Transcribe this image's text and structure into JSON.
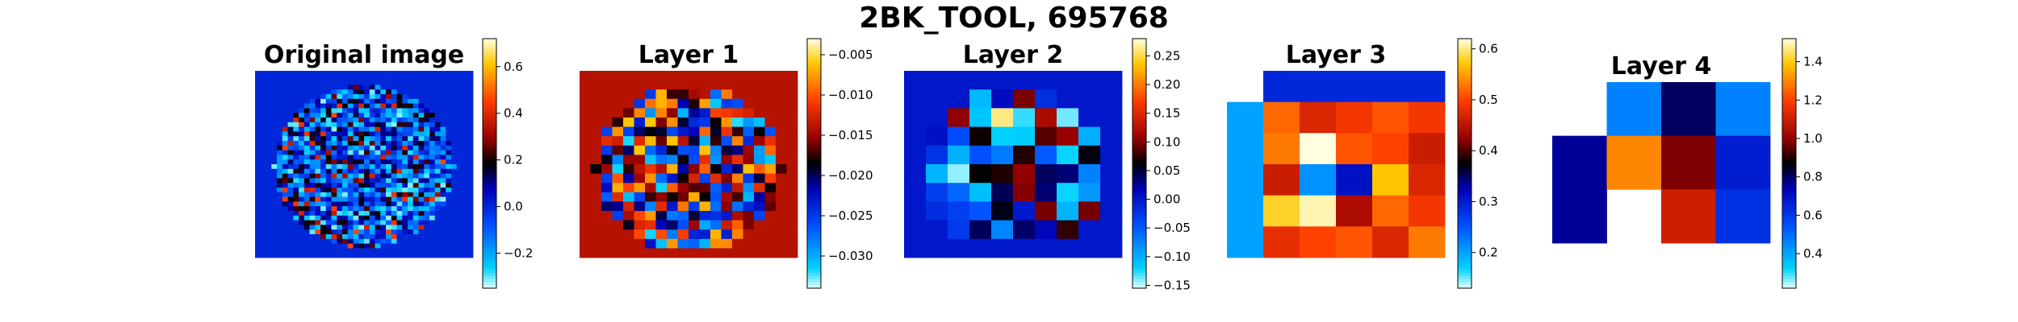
{
  "suptitle": "2BK_TOOL, 695768",
  "colormap": "jet-like diverging (cyan → blue → black → red → yellow)",
  "chart_data": [
    {
      "type": "heatmap",
      "title": "Original image",
      "shape": [
        40,
        40
      ],
      "content": "circular brain-like mask; background value ≈ 0.0; interior values roughly -0.3 to 0.7",
      "colorbar": {
        "ticks": [
          "0.6",
          "0.4",
          "0.2",
          "0.0",
          "−0.2"
        ],
        "range": [
          -0.35,
          0.72
        ]
      }
    },
    {
      "type": "heatmap",
      "title": "Layer 1",
      "shape": [
        20,
        20
      ],
      "content": "circular mask; background ≈ -0.014; interior values roughly -0.032 to -0.005",
      "colorbar": {
        "ticks": [
          "−0.005",
          "−0.010",
          "−0.015",
          "−0.020",
          "−0.025",
          "−0.030"
        ],
        "range": [
          -0.034,
          -0.003
        ]
      }
    },
    {
      "type": "heatmap",
      "title": "Layer 2",
      "shape": [
        10,
        10
      ],
      "content": "circular mask; background ≈ 0.0; interior values roughly -0.15 to 0.27",
      "colorbar": {
        "ticks": [
          "0.25",
          "0.20",
          "0.15",
          "0.10",
          "0.05",
          "0.00",
          "−0.05",
          "−0.10",
          "−0.15"
        ],
        "range": [
          -0.155,
          0.28
        ]
      }
    },
    {
      "type": "heatmap",
      "title": "Layer 3",
      "shape": [
        6,
        6
      ],
      "colorbar": {
        "ticks": [
          "0.6",
          "0.5",
          "0.4",
          "0.3",
          "0.2"
        ],
        "range": [
          0.13,
          0.62
        ]
      },
      "z": [
        [
          null,
          0.29,
          0.29,
          0.29,
          0.29,
          0.29
        ],
        [
          0.2,
          0.52,
          0.47,
          0.49,
          0.51,
          0.49
        ],
        [
          0.2,
          0.53,
          0.62,
          0.51,
          0.5,
          0.46
        ],
        [
          0.2,
          0.46,
          0.21,
          0.31,
          0.57,
          0.47
        ],
        [
          0.2,
          0.58,
          0.61,
          0.44,
          0.52,
          0.49
        ],
        [
          0.2,
          0.48,
          0.5,
          0.51,
          0.47,
          0.53
        ]
      ]
    },
    {
      "type": "heatmap",
      "title": "Layer 4",
      "shape": [
        3,
        4
      ],
      "colorbar": {
        "ticks": [
          "1.4",
          "1.2",
          "1.0",
          "0.8",
          "0.6",
          "0.4"
        ],
        "range": [
          0.22,
          1.52
        ]
      },
      "z": [
        [
          null,
          0.46,
          0.8,
          0.46
        ],
        [
          0.76,
          1.3,
          0.98,
          0.67
        ],
        [
          0.76,
          null,
          1.1,
          0.62
        ]
      ]
    }
  ]
}
